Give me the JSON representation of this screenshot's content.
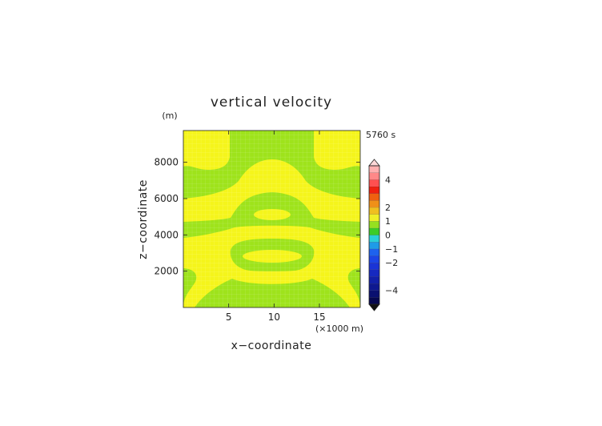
{
  "chart_data": {
    "type": "heatmap",
    "title": "vertical velocity",
    "xlabel": "x−coordinate",
    "ylabel": "z−coordinate",
    "x_unit": "(×1000 m)",
    "y_unit": "(m)",
    "time_label": "5760 s",
    "xlim": [
      0,
      19.5
    ],
    "ylim": [
      0,
      9750
    ],
    "x_ticks": [
      5,
      10,
      15
    ],
    "y_ticks": [
      2000,
      4000,
      6000,
      8000
    ],
    "x_tick_labels": [
      "5",
      "10",
      "15"
    ],
    "y_tick_labels": [
      "2000",
      "4000",
      "6000",
      "8000"
    ],
    "colorbar": {
      "levels": [
        -5,
        -4.5,
        -4,
        -3.5,
        -3,
        -2.5,
        -2,
        -1.5,
        -1,
        -0.5,
        0,
        0.5,
        1,
        1.5,
        2,
        2.5,
        3,
        3.5,
        4,
        4.5,
        5
      ],
      "colors": [
        "#06084f",
        "#0a1070",
        "#0e1890",
        "#1220a8",
        "#1629c0",
        "#1a34d6",
        "#1c45e6",
        "#1e62ee",
        "#1e9be8",
        "#2ad0d8",
        "#3ccc28",
        "#96e020",
        "#f0f028",
        "#f0c020",
        "#f09018",
        "#f06010",
        "#f02010",
        "#ff5050",
        "#ff8888",
        "#ffb0b0"
      ],
      "tick_values": [
        4,
        2,
        1,
        0,
        -1,
        -2,
        -4
      ],
      "tick_labels": [
        "4",
        "2",
        "1",
        "0",
        "−1",
        "−2",
        "−4"
      ],
      "extend": "both"
    },
    "field_colors": {
      "zero_to_half": "#9ee31b",
      "half_to_one": "#f5f51b"
    }
  }
}
